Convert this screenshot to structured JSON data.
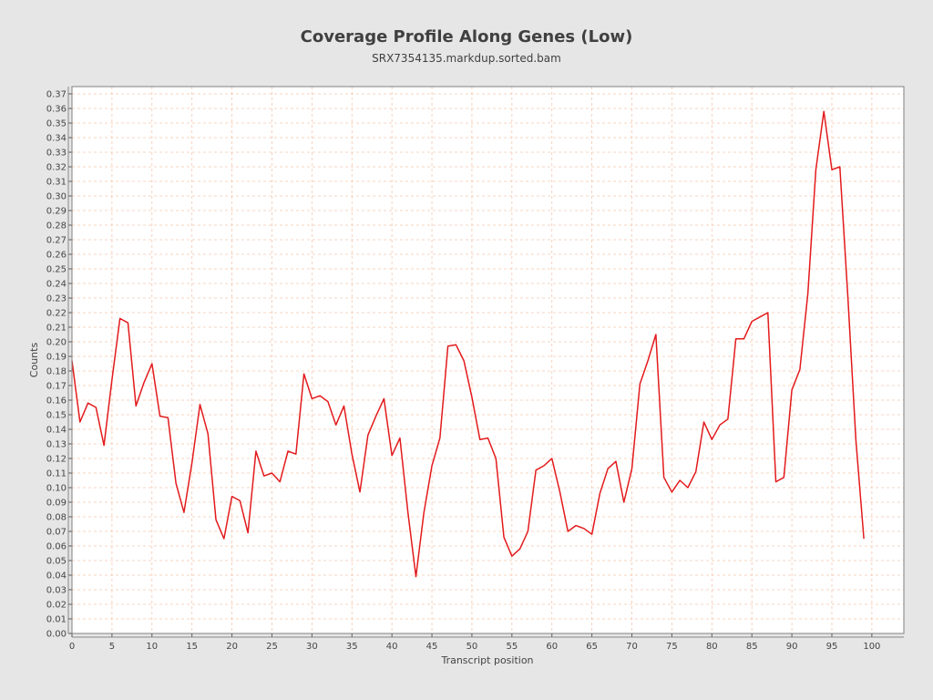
{
  "chart_data": {
    "type": "line",
    "title": "Coverage Profile Along Genes (Low)",
    "subtitle": "SRX7354135.markdup.sorted.bam",
    "xlabel": "Transcript position",
    "ylabel": "Counts",
    "xlim": [
      0,
      104
    ],
    "ylim": [
      0,
      0.375
    ],
    "xticks": [
      0,
      5,
      10,
      15,
      20,
      25,
      30,
      35,
      40,
      45,
      50,
      55,
      60,
      65,
      70,
      75,
      80,
      85,
      90,
      95,
      100
    ],
    "yticks": [
      0.0,
      0.01,
      0.02,
      0.03,
      0.04,
      0.05,
      0.06,
      0.07,
      0.08,
      0.09,
      0.1,
      0.11,
      0.12,
      0.13,
      0.14,
      0.15,
      0.16,
      0.17,
      0.18,
      0.19,
      0.2,
      0.21,
      0.22,
      0.23,
      0.24,
      0.25,
      0.26,
      0.27,
      0.28,
      0.29,
      0.3,
      0.31,
      0.32,
      0.33,
      0.34,
      0.35,
      0.36,
      0.37
    ],
    "grid": true,
    "colors": {
      "line": "#e31a1c",
      "grid": "#f5c6ad",
      "plot_bg": "#ffffff",
      "page_bg": "#e6e6e6"
    },
    "series": [
      {
        "x": [
          0,
          1,
          2,
          3,
          4,
          5,
          6,
          7,
          8,
          9,
          10,
          11,
          12,
          13,
          14,
          15,
          16,
          17,
          18,
          19,
          20,
          21,
          22,
          23,
          24,
          25,
          26,
          27,
          28,
          29,
          30,
          31,
          32,
          33,
          34,
          35,
          36,
          37,
          38,
          39,
          40,
          41,
          42,
          43,
          44,
          45,
          46,
          47,
          48,
          49,
          50,
          51,
          52,
          53,
          54,
          55,
          56,
          57,
          58,
          59,
          60,
          61,
          62,
          63,
          64,
          65,
          66,
          67,
          68,
          69,
          70,
          71,
          72,
          73,
          74,
          75,
          76,
          77,
          78,
          79,
          80,
          81,
          82,
          83,
          84,
          85,
          86,
          87,
          88,
          89,
          90,
          91,
          92,
          93,
          94,
          95,
          96,
          97,
          98,
          99
        ],
        "values": [
          0.187,
          0.145,
          0.158,
          0.155,
          0.129,
          0.174,
          0.216,
          0.213,
          0.156,
          0.172,
          0.185,
          0.149,
          0.148,
          0.103,
          0.083,
          0.117,
          0.157,
          0.137,
          0.078,
          0.065,
          0.094,
          0.091,
          0.069,
          0.125,
          0.108,
          0.11,
          0.104,
          0.125,
          0.123,
          0.178,
          0.161,
          0.163,
          0.159,
          0.143,
          0.156,
          0.123,
          0.097,
          0.136,
          0.149,
          0.161,
          0.122,
          0.134,
          0.083,
          0.039,
          0.083,
          0.115,
          0.134,
          0.197,
          0.198,
          0.187,
          0.162,
          0.133,
          0.134,
          0.12,
          0.066,
          0.053,
          0.058,
          0.07,
          0.112,
          0.115,
          0.12,
          0.097,
          0.07,
          0.074,
          0.072,
          0.068,
          0.096,
          0.113,
          0.118,
          0.09,
          0.113,
          0.171,
          0.187,
          0.205,
          0.107,
          0.097,
          0.105,
          0.1,
          0.111,
          0.145,
          0.133,
          0.143,
          0.147,
          0.202,
          0.202,
          0.214,
          0.217,
          0.22,
          0.104,
          0.107,
          0.167,
          0.181,
          0.233,
          0.318,
          0.358,
          0.318,
          0.32,
          0.231,
          0.133,
          0.065
        ]
      }
    ]
  }
}
